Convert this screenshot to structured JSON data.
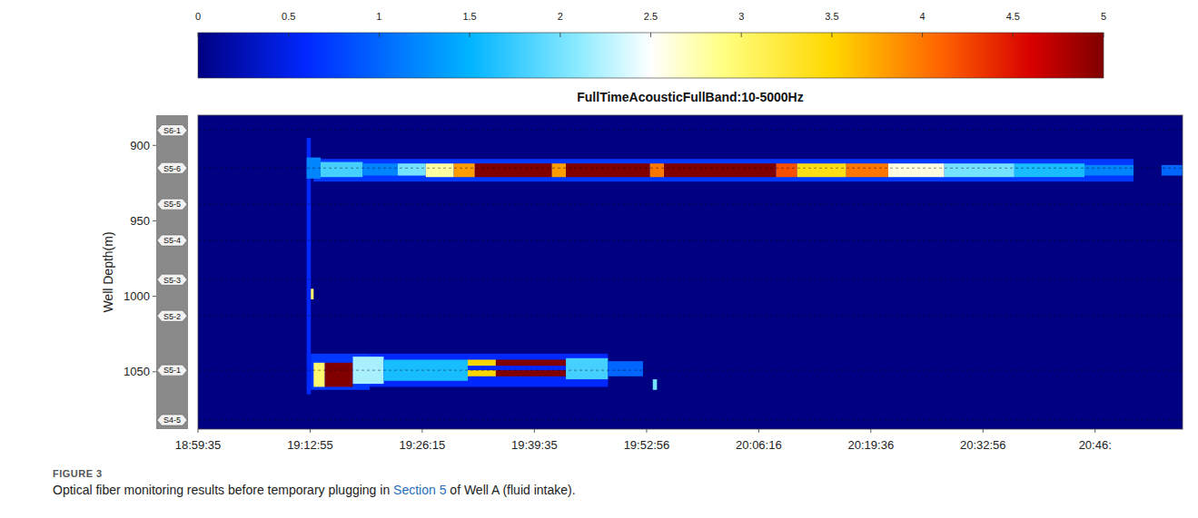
{
  "chart_data": {
    "type": "heatmap",
    "title": "FullTimeAcousticFullBand:10-5000Hz",
    "y_label": "Well Depth(m)",
    "xlim": [
      68375,
      75400
    ],
    "xticks": [
      {
        "value": 68375,
        "label": "18:59:35"
      },
      {
        "value": 69175,
        "label": "19:12:55"
      },
      {
        "value": 69975,
        "label": "19:26:15"
      },
      {
        "value": 70775,
        "label": "19:39:35"
      },
      {
        "value": 71576,
        "label": "19:52:56"
      },
      {
        "value": 72376,
        "label": "20:06:16"
      },
      {
        "value": 73176,
        "label": "20:19:36"
      },
      {
        "value": 73976,
        "label": "20:32:56"
      },
      {
        "value": 74776,
        "label": "20:46:"
      }
    ],
    "ylim": [
      880,
      1088
    ],
    "yticks": [
      900,
      950,
      1000,
      1050
    ],
    "colorbar_range": [
      0,
      5
    ],
    "colorbar_ticks": [
      0,
      0.5,
      1,
      1.5,
      2,
      2.5,
      3,
      3.5,
      4,
      4.5,
      5
    ],
    "background_value": 0,
    "stages": [
      {
        "label": "S6-1",
        "depth": 890
      },
      {
        "label": "S5-6",
        "depth": 915
      },
      {
        "label": "S5-5",
        "depth": 939
      },
      {
        "label": "S5-4",
        "depth": 963
      },
      {
        "label": "S5-3",
        "depth": 989
      },
      {
        "label": "S5-2",
        "depth": 1013
      },
      {
        "label": "S5-1",
        "depth": 1049
      },
      {
        "label": "S4-5",
        "depth": 1082
      }
    ],
    "cells": [
      [
        69150,
        69180,
        895,
        1065,
        0.6
      ],
      [
        69180,
        69200,
        995,
        1002,
        3
      ],
      [
        69200,
        75050,
        909,
        924,
        0.7
      ],
      [
        69150,
        69250,
        908,
        922,
        1.2
      ],
      [
        69250,
        69550,
        911,
        921,
        1.8
      ],
      [
        69550,
        69800,
        912,
        920,
        1.2
      ],
      [
        69800,
        70000,
        912,
        920,
        2
      ],
      [
        70000,
        70200,
        912,
        921,
        2.8
      ],
      [
        70200,
        70350,
        912,
        921,
        3.8
      ],
      [
        70350,
        70900,
        912,
        921,
        5
      ],
      [
        70900,
        71000,
        912,
        921,
        3.8
      ],
      [
        71000,
        71600,
        912,
        921,
        5
      ],
      [
        71600,
        71700,
        912,
        921,
        4
      ],
      [
        71700,
        72500,
        912,
        921,
        5
      ],
      [
        72500,
        72650,
        912,
        921,
        4.2
      ],
      [
        72650,
        73000,
        912,
        921,
        3.4
      ],
      [
        73000,
        73300,
        912,
        921,
        4
      ],
      [
        73300,
        73700,
        912,
        921,
        2.6
      ],
      [
        73700,
        74200,
        912,
        921,
        2
      ],
      [
        74200,
        74700,
        912,
        921,
        1.6
      ],
      [
        74700,
        75050,
        913,
        920,
        1.2
      ],
      [
        75250,
        75400,
        913,
        920,
        1
      ],
      [
        69180,
        69600,
        1038,
        1062,
        0.7
      ],
      [
        69600,
        71300,
        1038,
        1060,
        0.6
      ],
      [
        69200,
        69280,
        1044,
        1060,
        3
      ],
      [
        69280,
        69480,
        1044,
        1060,
        5
      ],
      [
        69480,
        69700,
        1040,
        1058,
        2.2
      ],
      [
        69700,
        70300,
        1042,
        1056,
        1.6
      ],
      [
        70300,
        70500,
        1042,
        1046,
        3.5
      ],
      [
        70300,
        70500,
        1049,
        1053,
        3.5
      ],
      [
        70500,
        71000,
        1042,
        1046,
        5
      ],
      [
        70500,
        71000,
        1049,
        1053,
        5
      ],
      [
        71000,
        71300,
        1041,
        1055,
        1.8
      ],
      [
        71300,
        71550,
        1043,
        1053,
        1
      ],
      [
        71620,
        71650,
        1055,
        1062,
        2
      ]
    ],
    "caption": {
      "label": "FIGURE 3",
      "parts": [
        "Optical fiber monitoring results before temporary plugging in ",
        "Section 5",
        " of Well A (fluid intake)."
      ]
    }
  }
}
